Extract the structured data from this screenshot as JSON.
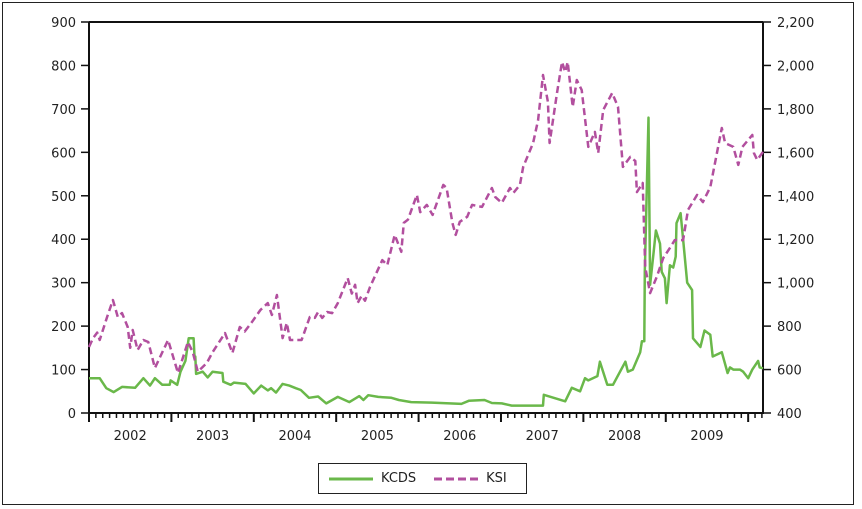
{
  "chart_data": {
    "type": "line",
    "title": "",
    "xlabel": "",
    "ylabel_left": "",
    "ylabel_right": "",
    "xlim": [
      2002.0,
      2010.18
    ],
    "ylim_left": [
      0,
      900
    ],
    "ylim_right": [
      400,
      2200
    ],
    "x_tick_labels": [
      "2002",
      "2003",
      "2004",
      "2005",
      "2006",
      "2007",
      "2008",
      "2009"
    ],
    "y_left_ticks": [
      0,
      100,
      200,
      300,
      400,
      500,
      600,
      700,
      800,
      900
    ],
    "y_left_tick_labels": [
      "0",
      "100",
      "200",
      "300",
      "400",
      "500",
      "600",
      "700",
      "800",
      "900"
    ],
    "y_right_ticks": [
      400,
      600,
      800,
      1000,
      1200,
      1400,
      1600,
      1800,
      2000,
      2200
    ],
    "y_right_tick_labels": [
      "400",
      "600",
      "800",
      "1,000",
      "1,200",
      "1,400",
      "1,600",
      "1,800",
      "2,000",
      "2,200"
    ],
    "grid": false,
    "legend_position": "bottom-center",
    "series": [
      {
        "name": "KCDS",
        "axis": "left",
        "style": "solid",
        "color": "#6ab84a",
        "x": [
          2002.0,
          2002.13,
          2002.21,
          2002.3,
          2002.4,
          2002.56,
          2002.66,
          2002.74,
          2002.8,
          2002.89,
          2002.98,
          2002.99,
          2003.07,
          2003.11,
          2003.17,
          2003.21,
          2003.27,
          2003.28,
          2003.29,
          2003.3,
          2003.38,
          2003.44,
          2003.5,
          2003.62,
          2003.63,
          2003.72,
          2003.76,
          2003.9,
          2004.0,
          2004.09,
          2004.17,
          2004.21,
          2004.27,
          2004.35,
          2004.43,
          2004.51,
          2004.57,
          2004.67,
          2004.78,
          2004.88,
          2005.02,
          2005.16,
          2005.28,
          2005.33,
          2005.39,
          2005.51,
          2005.67,
          2005.76,
          2005.91,
          2006.16,
          2006.52,
          2006.61,
          2006.8,
          2006.89,
          2007.01,
          2007.13,
          2007.51,
          2007.52,
          2007.78,
          2007.86,
          2007.96,
          2008.02,
          2008.06,
          2008.17,
          2008.2,
          2008.29,
          2008.36,
          2008.51,
          2008.54,
          2008.6,
          2008.69,
          2008.71,
          2008.74,
          2008.745,
          2008.79,
          2008.81,
          2008.85,
          2008.88,
          2008.93,
          2008.95,
          2008.99,
          2009.01,
          2009.05,
          2009.09,
          2009.12,
          2009.13,
          2009.18,
          2009.21,
          2009.26,
          2009.32,
          2009.33,
          2009.42,
          2009.47,
          2009.54,
          2009.57,
          2009.68,
          2009.75,
          2009.78,
          2009.82,
          2009.9,
          2009.94,
          2010.0,
          2010.05,
          2010.12,
          2010.14,
          2010.18
        ],
        "values": [
          80,
          80,
          57,
          48,
          60,
          58,
          80,
          63,
          80,
          65,
          65,
          75,
          65,
          95,
          120,
          172,
          172,
          130,
          130,
          90,
          95,
          82,
          95,
          92,
          72,
          65,
          70,
          67,
          45,
          63,
          52,
          57,
          47,
          67,
          63,
          57,
          53,
          35,
          38,
          22,
          37,
          25,
          39,
          30,
          41,
          37,
          35,
          30,
          25,
          24,
          21,
          28,
          30,
          23,
          22,
          17,
          17,
          42,
          27,
          58,
          50,
          80,
          75,
          85,
          118,
          65,
          65,
          118,
          95,
          100,
          140,
          165,
          165,
          325,
          680,
          295,
          365,
          420,
          390,
          325,
          310,
          253,
          340,
          335,
          360,
          437,
          460,
          400,
          300,
          283,
          172,
          152,
          190,
          180,
          130,
          140,
          92,
          105,
          100,
          100,
          95,
          80,
          100,
          120,
          105,
          103
        ]
      },
      {
        "name": "KSI",
        "axis": "right",
        "style": "dashed",
        "color": "#b24f9e",
        "x": [
          2002.0,
          2002.05,
          2002.1,
          2002.13,
          2002.22,
          2002.29,
          2002.35,
          2002.4,
          2002.47,
          2002.5,
          2002.53,
          2002.59,
          2002.66,
          2002.72,
          2002.8,
          2002.96,
          2003.08,
          2003.2,
          2003.26,
          2003.32,
          2003.43,
          2003.5,
          2003.65,
          2003.74,
          2003.83,
          2003.89,
          2003.98,
          2004.08,
          2004.17,
          2004.22,
          2004.28,
          2004.35,
          2004.4,
          2004.44,
          2004.58,
          2004.68,
          2004.74,
          2004.78,
          2004.83,
          2004.89,
          2004.95,
          2005.02,
          2005.14,
          2005.19,
          2005.23,
          2005.26,
          2005.31,
          2005.35,
          2005.41,
          2005.56,
          2005.62,
          2005.71,
          2005.79,
          2005.82,
          2005.87,
          2005.98,
          2006.02,
          2006.1,
          2006.17,
          2006.3,
          2006.34,
          2006.41,
          2006.45,
          2006.5,
          2006.59,
          2006.65,
          2006.77,
          2006.89,
          2006.93,
          2007.01,
          2007.11,
          2007.15,
          2007.23,
          2007.27,
          2007.39,
          2007.45,
          2007.51,
          2007.57,
          2007.59,
          2007.68,
          2007.74,
          2007.78,
          2007.81,
          2007.87,
          2007.92,
          2007.98,
          2008.06,
          2008.14,
          2008.18,
          2008.24,
          2008.35,
          2008.42,
          2008.48,
          2008.57,
          2008.63,
          2008.65,
          2008.72,
          2008.75,
          2008.81,
          2008.89,
          2008.97,
          2009.05,
          2009.11,
          2009.21,
          2009.27,
          2009.38,
          2009.45,
          2009.54,
          2009.68,
          2009.72,
          2009.82,
          2009.88,
          2009.93,
          2010.05,
          2010.07,
          2010.11,
          2010.18
        ],
        "values": [
          704,
          745,
          770,
          736,
          842,
          920,
          842,
          860,
          796,
          700,
          782,
          690,
          736,
          727,
          607,
          736,
          584,
          727,
          680,
          590,
          630,
          680,
          768,
          676,
          796,
          775,
          820,
          874,
          906,
          851,
          943,
          745,
          815,
          736,
          736,
          842,
          838,
          865,
          838,
          865,
          860,
          906,
          1021,
          950,
          990,
          906,
          940,
          917,
          980,
          1104,
          1081,
          1220,
          1142,
          1275,
          1290,
          1404,
          1325,
          1358,
          1312,
          1450,
          1436,
          1275,
          1220,
          1280,
          1303,
          1358,
          1349,
          1436,
          1395,
          1367,
          1436,
          1413,
          1450,
          1533,
          1643,
          1749,
          1956,
          1832,
          1643,
          1873,
          2016,
          1970,
          2016,
          1809,
          1933,
          1887,
          1625,
          1694,
          1597,
          1795,
          1873,
          1809,
          1533,
          1579,
          1560,
          1417,
          1459,
          1072,
          952,
          1026,
          1114,
          1160,
          1196,
          1196,
          1335,
          1404,
          1371,
          1440,
          1712,
          1643,
          1625,
          1542,
          1625,
          1680,
          1597,
          1565,
          1602
        ]
      }
    ]
  }
}
